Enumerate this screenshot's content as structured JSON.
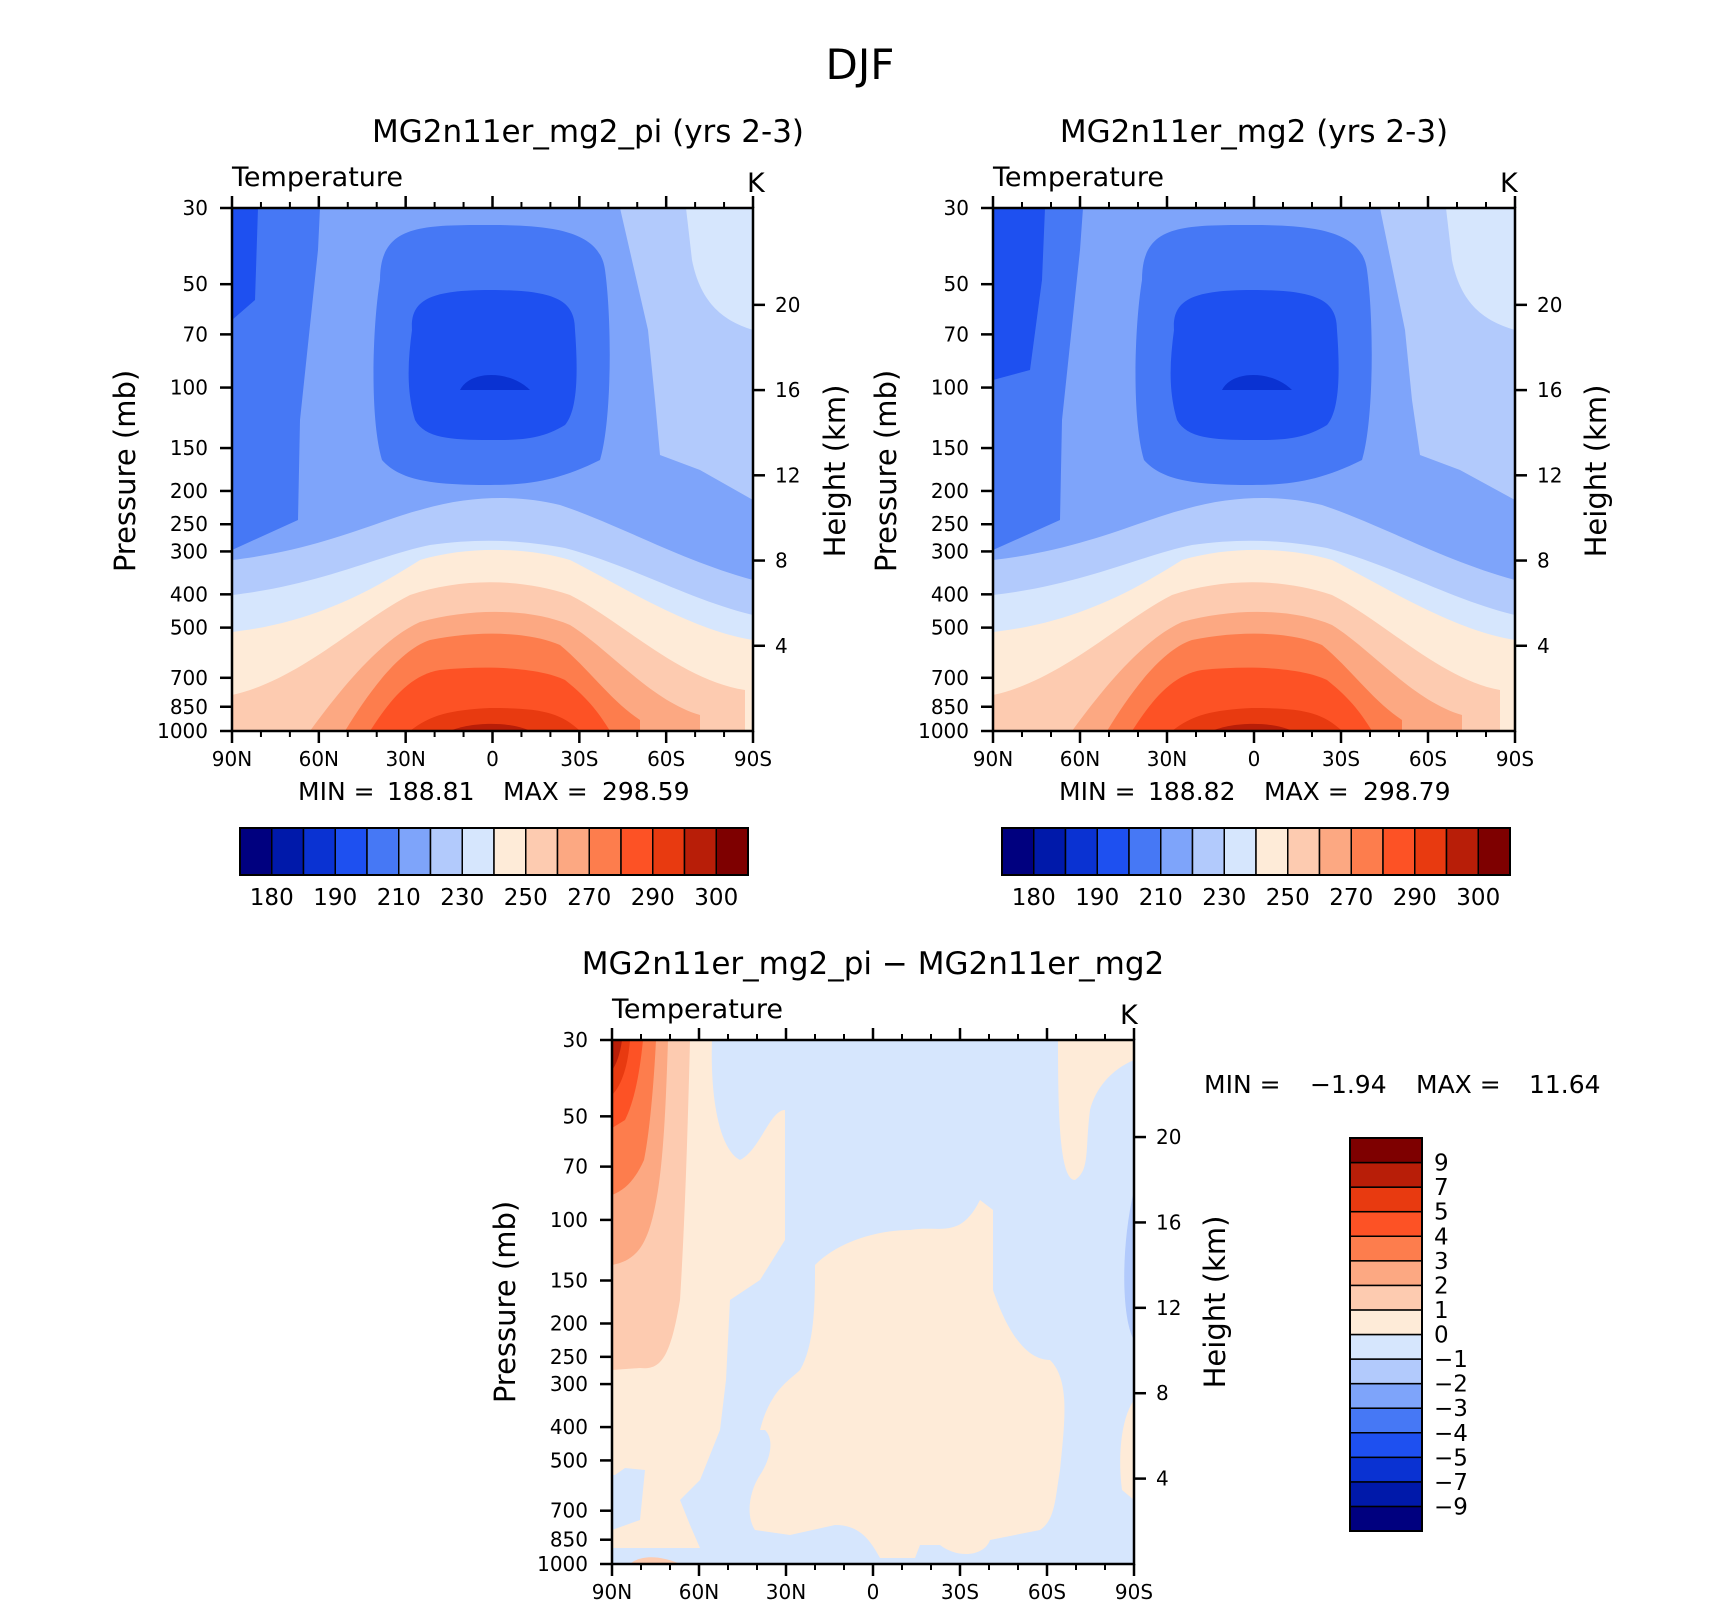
{
  "figure_title": "DJF",
  "colors": {
    "temperature": [
      "#00007f",
      "#0019aa",
      "#0a32d2",
      "#1e50f0",
      "#4678f5",
      "#7ea4fa",
      "#b2cafc",
      "#d6e6fd",
      "#feebd8",
      "#fdcbb0",
      "#fca882",
      "#fd7d4d",
      "#fd5225",
      "#e83a10",
      "#b81e08",
      "#7e0000"
    ],
    "difference": [
      "#00007f",
      "#0019aa",
      "#0a32d2",
      "#1e50f0",
      "#4678f5",
      "#7ea4fa",
      "#b2cafc",
      "#d6e6fd",
      "#feebd8",
      "#fdcbb0",
      "#fca882",
      "#fd7d4d",
      "#fd5225",
      "#e83a10",
      "#b81e08",
      "#7e0000"
    ]
  },
  "chart_data": [
    {
      "id": "pi",
      "type": "heatmap",
      "title": "MG2n11er_mg2_pi (yrs 2-3)",
      "variable_label": "Temperature",
      "units": "K",
      "ylabel": "Pressure (mb)",
      "ylabel_right": "Height (km)",
      "x_ticks": [
        "90N",
        "60N",
        "30N",
        "0",
        "30S",
        "60S",
        "90S"
      ],
      "y_ticks": [
        "30",
        "50",
        "70",
        "100",
        "150",
        "200",
        "250",
        "300",
        "400",
        "500",
        "700",
        "850",
        "1000"
      ],
      "right_ticks": [
        "20",
        "16",
        "12",
        "8",
        "4"
      ],
      "stats": {
        "min_label": "MIN =",
        "min": "188.81",
        "max_label": "MAX =",
        "max": "298.59"
      },
      "colorbar_labels": [
        "180",
        "190",
        "210",
        "230",
        "250",
        "270",
        "290",
        "300"
      ]
    },
    {
      "id": "mg2",
      "type": "heatmap",
      "title": "MG2n11er_mg2 (yrs 2-3)",
      "variable_label": "Temperature",
      "units": "K",
      "ylabel": "Pressure (mb)",
      "ylabel_right": "Height (km)",
      "x_ticks": [
        "90N",
        "60N",
        "30N",
        "0",
        "30S",
        "60S",
        "90S"
      ],
      "y_ticks": [
        "30",
        "50",
        "70",
        "100",
        "150",
        "200",
        "250",
        "300",
        "400",
        "500",
        "700",
        "850",
        "1000"
      ],
      "right_ticks": [
        "20",
        "16",
        "12",
        "8",
        "4"
      ],
      "stats": {
        "min_label": "MIN =",
        "min": "188.82",
        "max_label": "MAX =",
        "max": "298.79"
      },
      "colorbar_labels": [
        "180",
        "190",
        "210",
        "230",
        "250",
        "270",
        "290",
        "300"
      ]
    },
    {
      "id": "diff",
      "type": "heatmap",
      "title": "MG2n11er_mg2_pi − MG2n11er_mg2",
      "variable_label": "Temperature",
      "units": "K",
      "ylabel": "Pressure (mb)",
      "ylabel_right": "Height (km)",
      "x_ticks": [
        "90N",
        "60N",
        "30N",
        "0",
        "30S",
        "60S",
        "90S"
      ],
      "y_ticks": [
        "30",
        "50",
        "70",
        "100",
        "150",
        "200",
        "250",
        "300",
        "400",
        "500",
        "700",
        "850",
        "1000"
      ],
      "right_ticks": [
        "20",
        "16",
        "12",
        "8",
        "4"
      ],
      "stats": {
        "min_label": "MIN =",
        "min": "−1.94",
        "max_label": "MAX =",
        "max": "11.64"
      },
      "colorbar_labels": [
        "9",
        "7",
        "5",
        "4",
        "3",
        "2",
        "1",
        "0",
        "−1",
        "−2",
        "−3",
        "−4",
        "−5",
        "−7",
        "−9"
      ]
    }
  ]
}
